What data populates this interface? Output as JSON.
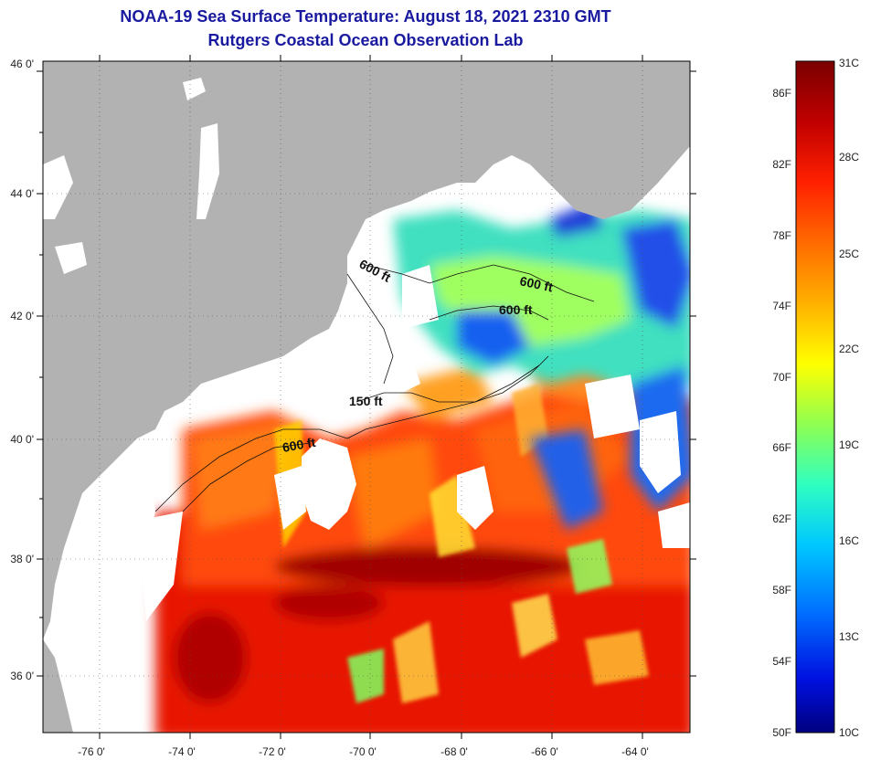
{
  "header": {
    "title": "NOAA-19 Sea Surface Temperature:  August 18, 2021 2310 GMT",
    "subtitle": "Rutgers Coastal Ocean Observation Lab"
  },
  "map": {
    "lat_labels": [
      "46 0'",
      "44 0'",
      "42 0'",
      "40 0'",
      "38 0'",
      "36 0'"
    ],
    "lon_labels": [
      "-76 0'",
      "-74 0'",
      "-72 0'",
      "-70 0'",
      "-68 0'",
      "-66 0'",
      "-64 0'"
    ],
    "contour_labels": [
      "600 ft",
      "600 ft",
      "600 ft",
      "150 ft",
      "600 ft"
    ],
    "colors": {
      "land": "#b2b2b2",
      "cloud": "#ffffff",
      "border": "#000000"
    }
  },
  "colorbar": {
    "celsius_labels": [
      "31C",
      "28C",
      "25C",
      "22C",
      "19C",
      "16C",
      "13C",
      "10C"
    ],
    "fahrenheit_labels": [
      "86F",
      "82F",
      "78F",
      "74F",
      "70F",
      "66F",
      "62F",
      "58F",
      "54F",
      "50F"
    ],
    "colors": [
      "#7a0000",
      "#c00000",
      "#ff2000",
      "#ff6a00",
      "#ffb000",
      "#ffff00",
      "#90ff50",
      "#30ffc0",
      "#00c8ff",
      "#0070ff",
      "#0010e0",
      "#000080"
    ]
  }
}
